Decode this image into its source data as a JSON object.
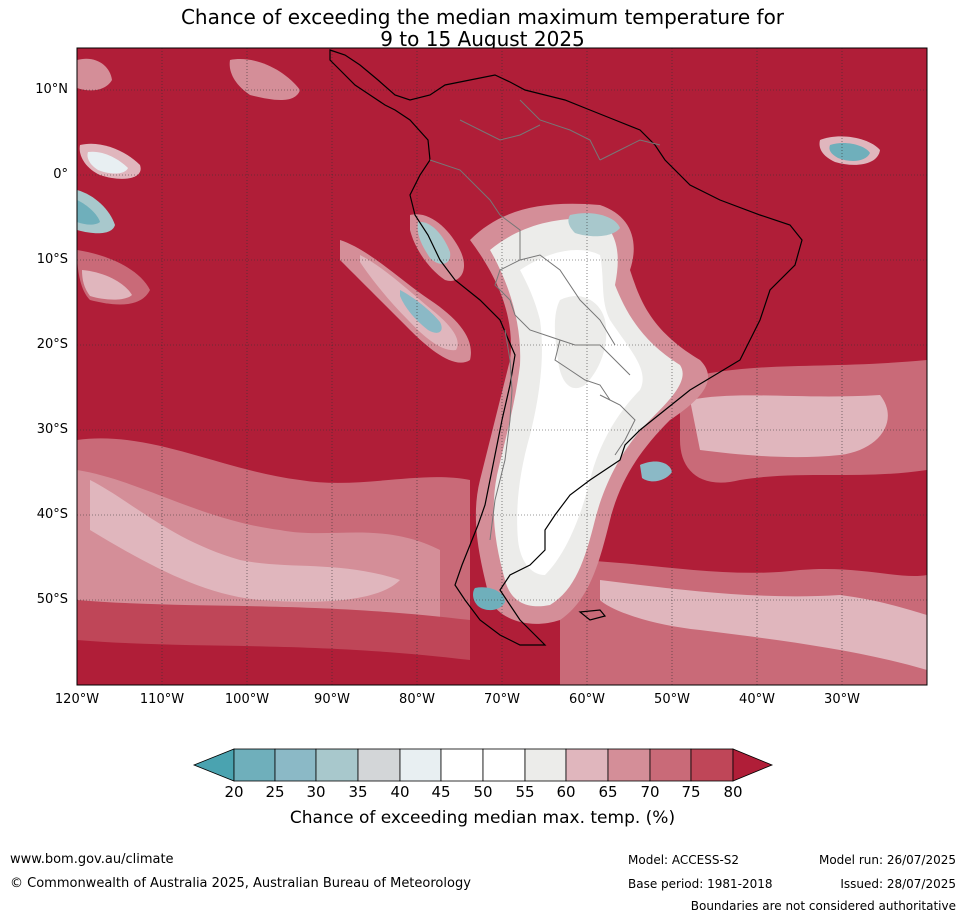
{
  "title": {
    "line1": "Chance of exceeding the median maximum temperature for",
    "line2": "9 to 15 August 2025"
  },
  "map": {
    "lat_labels": [
      "10°N",
      "0°",
      "10°S",
      "20°S",
      "30°S",
      "40°S",
      "50°S"
    ],
    "lon_labels": [
      "120°W",
      "110°W",
      "100°W",
      "90°W",
      "80°W",
      "70°W",
      "60°W",
      "50°W",
      "40°W",
      "30°W"
    ]
  },
  "colorbar": {
    "ticks": [
      "20",
      "25",
      "30",
      "35",
      "40",
      "45",
      "50",
      "55",
      "60",
      "65",
      "70",
      "75",
      "80"
    ],
    "colors": {
      "below20": "#4aa3b0",
      "c20_25": "#6fafbb",
      "c25_30": "#8bb9c6",
      "c30_35": "#a8c8cc",
      "c35_40": "#d3d6d8",
      "c40_45": "#e8eff2",
      "c45_50": "#ffffff",
      "c50_55": "#ffffff",
      "c55_60": "#ececea",
      "c60_65": "#e0b6bd",
      "c65_70": "#d48e98",
      "c70_75": "#c96a78",
      "c75_80": "#bf4658",
      "above80": "#b01e38"
    },
    "label": "Chance of exceeding median max. temp. (%)"
  },
  "footer": {
    "website": "www.bom.gov.au/climate",
    "copyright": "© Commonwealth of Australia 2025, Australian Bureau of Meteorology",
    "model": "Model: ACCESS-S2",
    "base_period": "Base period: 1981-2018",
    "model_run": "Model run: 26/07/2025",
    "issued": "Issued: 28/07/2025",
    "disclaimer": "Boundaries are not considered authoritative"
  }
}
